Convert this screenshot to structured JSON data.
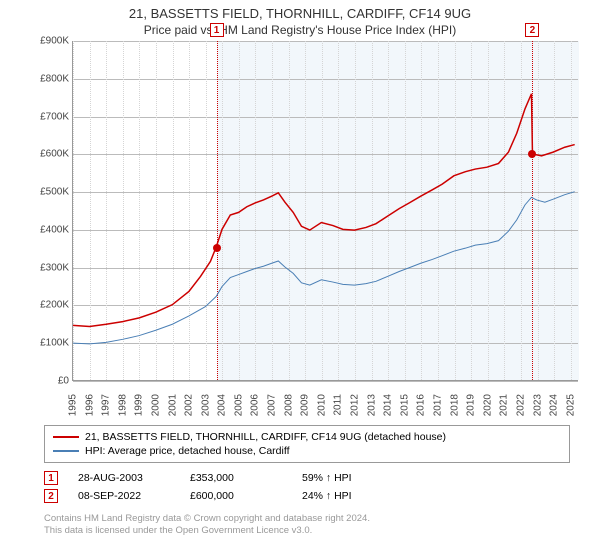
{
  "title_line1": "21, BASSETTS FIELD, THORNHILL, CARDIFF, CF14 9UG",
  "title_line2": "Price paid vs. HM Land Registry's House Price Index (HPI)",
  "chart": {
    "type": "line",
    "background_color": "#ffffff",
    "plot_bg_band_start_year": 2003.65,
    "plot_bg_band_end_year": 2025.5,
    "plot_bg_band_color": "#f2f7fb",
    "xlim": [
      1995,
      2025.5
    ],
    "ylim": [
      0,
      900
    ],
    "y_ticks": [
      0,
      100,
      200,
      300,
      400,
      500,
      600,
      700,
      800,
      900
    ],
    "y_tick_labels": [
      "£0",
      "£100K",
      "£200K",
      "£300K",
      "£400K",
      "£500K",
      "£600K",
      "£700K",
      "£800K",
      "£900K"
    ],
    "x_ticks": [
      1995,
      1996,
      1997,
      1998,
      1999,
      2000,
      2001,
      2002,
      2003,
      2004,
      2005,
      2006,
      2007,
      2008,
      2009,
      2010,
      2011,
      2012,
      2013,
      2014,
      2015,
      2016,
      2017,
      2018,
      2019,
      2020,
      2021,
      2022,
      2023,
      2024,
      2025
    ],
    "grid_color": "#bbbbbb",
    "axis_font_size": 10,
    "series": [
      {
        "name": "price_paid",
        "color": "#cc0000",
        "line_width": 1.5,
        "label": "21, BASSETTS FIELD, THORNHILL, CARDIFF, CF14 9UG (detached house)",
        "points": [
          [
            1995,
            145
          ],
          [
            1996,
            142
          ],
          [
            1997,
            148
          ],
          [
            1998,
            155
          ],
          [
            1999,
            165
          ],
          [
            2000,
            180
          ],
          [
            2001,
            200
          ],
          [
            2002,
            235
          ],
          [
            2002.7,
            275
          ],
          [
            2003.3,
            315
          ],
          [
            2003.65,
            353
          ],
          [
            2004,
            400
          ],
          [
            2004.5,
            438
          ],
          [
            2005,
            445
          ],
          [
            2005.5,
            460
          ],
          [
            2006,
            470
          ],
          [
            2006.5,
            478
          ],
          [
            2007,
            488
          ],
          [
            2007.4,
            497
          ],
          [
            2007.8,
            472
          ],
          [
            2008.3,
            445
          ],
          [
            2008.8,
            408
          ],
          [
            2009.3,
            398
          ],
          [
            2010,
            418
          ],
          [
            2010.7,
            410
          ],
          [
            2011.3,
            400
          ],
          [
            2012,
            398
          ],
          [
            2012.7,
            405
          ],
          [
            2013.3,
            415
          ],
          [
            2014,
            435
          ],
          [
            2014.7,
            455
          ],
          [
            2015.3,
            470
          ],
          [
            2016,
            488
          ],
          [
            2016.7,
            505
          ],
          [
            2017.3,
            520
          ],
          [
            2018,
            542
          ],
          [
            2018.7,
            553
          ],
          [
            2019.3,
            560
          ],
          [
            2020,
            565
          ],
          [
            2020.7,
            575
          ],
          [
            2021.3,
            605
          ],
          [
            2021.8,
            655
          ],
          [
            2022.3,
            720
          ],
          [
            2022.69,
            760
          ],
          [
            2022.75,
            600
          ],
          [
            2023.3,
            595
          ],
          [
            2024,
            605
          ],
          [
            2024.7,
            618
          ],
          [
            2025.3,
            625
          ]
        ]
      },
      {
        "name": "hpi",
        "color": "#4a7fb5",
        "line_width": 1,
        "label": "HPI: Average price, detached house, Cardiff",
        "points": [
          [
            1995,
            98
          ],
          [
            1996,
            96
          ],
          [
            1997,
            100
          ],
          [
            1998,
            108
          ],
          [
            1999,
            118
          ],
          [
            2000,
            132
          ],
          [
            2001,
            148
          ],
          [
            2002,
            170
          ],
          [
            2003,
            195
          ],
          [
            2003.65,
            222
          ],
          [
            2004,
            248
          ],
          [
            2004.5,
            272
          ],
          [
            2005,
            280
          ],
          [
            2005.5,
            288
          ],
          [
            2006,
            296
          ],
          [
            2006.5,
            302
          ],
          [
            2007,
            310
          ],
          [
            2007.4,
            316
          ],
          [
            2007.8,
            300
          ],
          [
            2008.3,
            283
          ],
          [
            2008.8,
            258
          ],
          [
            2009.3,
            252
          ],
          [
            2010,
            266
          ],
          [
            2010.7,
            260
          ],
          [
            2011.3,
            254
          ],
          [
            2012,
            252
          ],
          [
            2012.7,
            256
          ],
          [
            2013.3,
            262
          ],
          [
            2014,
            275
          ],
          [
            2014.7,
            288
          ],
          [
            2015.3,
            298
          ],
          [
            2016,
            310
          ],
          [
            2016.7,
            320
          ],
          [
            2017.3,
            330
          ],
          [
            2018,
            342
          ],
          [
            2018.7,
            350
          ],
          [
            2019.3,
            358
          ],
          [
            2020,
            362
          ],
          [
            2020.7,
            370
          ],
          [
            2021.3,
            395
          ],
          [
            2021.8,
            425
          ],
          [
            2022.3,
            465
          ],
          [
            2022.69,
            485
          ],
          [
            2023,
            478
          ],
          [
            2023.5,
            472
          ],
          [
            2024,
            480
          ],
          [
            2024.7,
            492
          ],
          [
            2025.3,
            500
          ]
        ]
      }
    ],
    "reference_lines": [
      {
        "x": 2003.65,
        "color": "#cc0000",
        "marker_num": "1"
      },
      {
        "x": 2022.69,
        "color": "#cc0000",
        "marker_num": "2"
      }
    ],
    "price_points": [
      {
        "x": 2003.65,
        "y": 353,
        "color": "#cc0000"
      },
      {
        "x": 2022.69,
        "y": 600,
        "color": "#cc0000"
      }
    ]
  },
  "legend": {
    "border_color": "#999999",
    "items": [
      {
        "color": "#cc0000",
        "label": "21, BASSETTS FIELD, THORNHILL, CARDIFF, CF14 9UG (detached house)"
      },
      {
        "color": "#4a7fb5",
        "label": "HPI: Average price, detached house, Cardiff"
      }
    ]
  },
  "events": [
    {
      "num": "1",
      "box_color": "#cc0000",
      "date": "28-AUG-2003",
      "price": "£353,000",
      "pct": "59%",
      "arrow": "↑",
      "suffix": "HPI"
    },
    {
      "num": "2",
      "box_color": "#cc0000",
      "date": "08-SEP-2022",
      "price": "£600,000",
      "pct": "24%",
      "arrow": "↑",
      "suffix": "HPI"
    }
  ],
  "footer_line1": "Contains HM Land Registry data © Crown copyright and database right 2024.",
  "footer_line2": "This data is licensed under the Open Government Licence v3.0."
}
